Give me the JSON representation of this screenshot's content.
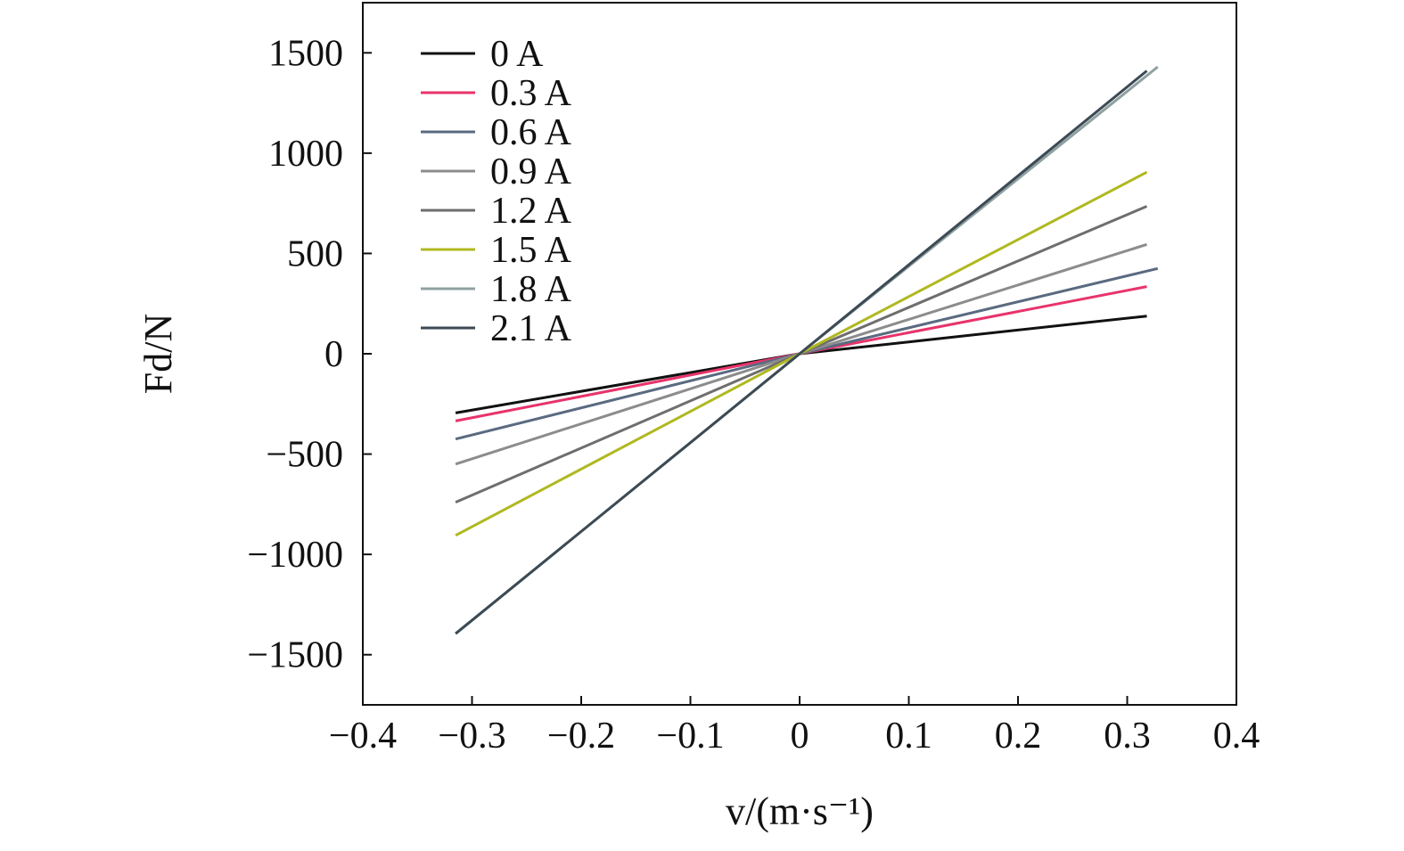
{
  "chart_data": {
    "type": "line",
    "title": "",
    "xlabel": "v/(m·s⁻¹)",
    "ylabel": "Fd/N",
    "xlim": [
      -0.4,
      0.4
    ],
    "ylim": [
      -1750,
      1750
    ],
    "xticks": [
      -0.4,
      -0.3,
      -0.2,
      -0.1,
      0,
      0.1,
      0.2,
      0.3,
      0.4
    ],
    "yticks": [
      -1500,
      -1000,
      -500,
      0,
      500,
      1000,
      1500
    ],
    "xtick_labels": [
      "−0.4",
      "−0.3",
      "−0.2",
      "−0.1",
      "0",
      "0.1",
      "0.2",
      "0.3",
      "0.4"
    ],
    "ytick_labels": [
      "−1500",
      "−1000",
      "−500",
      "0",
      "500",
      "1000",
      "1500"
    ],
    "grid": false,
    "legend_position": "top-left",
    "series": [
      {
        "name": "0 A",
        "color": "#111111",
        "x": [
          -0.315,
          0,
          0.318
        ],
        "y": [
          -295,
          0,
          188
        ]
      },
      {
        "name": "0.3 A",
        "color": "#e8336b",
        "x": [
          -0.315,
          0,
          0.318
        ],
        "y": [
          -335,
          0,
          335
        ]
      },
      {
        "name": "0.6 A",
        "color": "#5a6a80",
        "x": [
          -0.315,
          0,
          0.328
        ],
        "y": [
          -425,
          0,
          425
        ]
      },
      {
        "name": "0.9 A",
        "color": "#8c8c8c",
        "x": [
          -0.315,
          0,
          0.318
        ],
        "y": [
          -550,
          0,
          545
        ]
      },
      {
        "name": "1.2 A",
        "color": "#6e6e6e",
        "x": [
          -0.315,
          0,
          0.318
        ],
        "y": [
          -740,
          0,
          735
        ]
      },
      {
        "name": "1.5 A",
        "color": "#b0b820",
        "x": [
          -0.315,
          0,
          0.318
        ],
        "y": [
          -905,
          0,
          905
        ]
      },
      {
        "name": "1.8 A",
        "color": "#8fa0a0",
        "x": [
          -0.315,
          0,
          0.328
        ],
        "y": [
          -1395,
          0,
          1430
        ]
      },
      {
        "name": "2.1 A",
        "color": "#3c4a55",
        "x": [
          -0.315,
          0,
          0.318
        ],
        "y": [
          -1395,
          0,
          1410
        ]
      }
    ]
  }
}
